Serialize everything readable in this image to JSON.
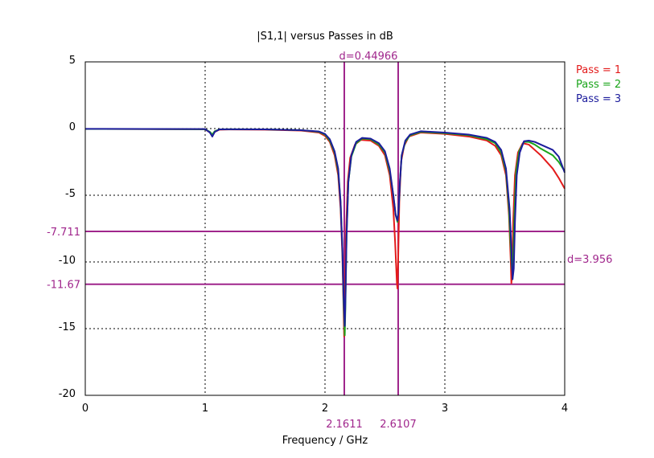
{
  "chart_data": {
    "type": "line",
    "title": "|S1,1| versus Passes in dB",
    "xlabel": "Frequency / GHz",
    "ylabel": "",
    "xlim": [
      0,
      4
    ],
    "ylim": [
      -20,
      5
    ],
    "x_ticks": [
      "0",
      "1",
      "2",
      "3",
      "4"
    ],
    "y_ticks": [
      "5",
      "0",
      "-5",
      "-10",
      "-15",
      "-20"
    ],
    "x_tick_values": [
      0,
      1,
      2,
      3,
      4
    ],
    "y_tick_values": [
      5,
      0,
      -5,
      -10,
      -15,
      -20
    ],
    "grid": true,
    "legend_position": "right",
    "series": [
      {
        "name": "Pass = 1",
        "color": "#e31b1b",
        "x": [
          0,
          0.5,
          1.0,
          1.04,
          1.06,
          1.08,
          1.12,
          1.2,
          1.5,
          1.8,
          1.95,
          2.0,
          2.04,
          2.08,
          2.11,
          2.13,
          2.145,
          2.155,
          2.16,
          2.165,
          2.175,
          2.19,
          2.21,
          2.25,
          2.3,
          2.38,
          2.45,
          2.5,
          2.54,
          2.57,
          2.585,
          2.6,
          2.605,
          2.61,
          2.62,
          2.635,
          2.66,
          2.7,
          2.8,
          3.0,
          3.2,
          3.35,
          3.42,
          3.47,
          3.51,
          3.535,
          3.55,
          3.555,
          3.56,
          3.57,
          3.585,
          3.61,
          3.65,
          3.7,
          3.75,
          3.8,
          3.9,
          3.95,
          4.0
        ],
        "values": [
          -0.03,
          -0.04,
          -0.05,
          -0.3,
          -0.55,
          -0.25,
          -0.08,
          -0.07,
          -0.08,
          -0.15,
          -0.3,
          -0.55,
          -1.0,
          -2.0,
          -3.5,
          -6.0,
          -9.5,
          -13.5,
          -15.6,
          -13.2,
          -8.0,
          -4.0,
          -2.2,
          -1.2,
          -0.85,
          -0.9,
          -1.3,
          -2.0,
          -3.5,
          -6.0,
          -8.5,
          -11.6,
          -12.0,
          -10.0,
          -5.5,
          -2.5,
          -1.3,
          -0.6,
          -0.3,
          -0.4,
          -0.6,
          -0.9,
          -1.3,
          -2.0,
          -3.5,
          -6.5,
          -10.0,
          -11.6,
          -11.0,
          -7.0,
          -3.5,
          -1.8,
          -1.1,
          -1.2,
          -1.6,
          -2.0,
          -3.0,
          -3.7,
          -4.5
        ]
      },
      {
        "name": "Pass = 2",
        "color": "#1ba51b",
        "x": [
          0,
          0.5,
          1.0,
          1.04,
          1.06,
          1.08,
          1.12,
          1.2,
          1.5,
          1.8,
          1.95,
          2.0,
          2.04,
          2.08,
          2.11,
          2.13,
          2.145,
          2.155,
          2.165,
          2.17,
          2.18,
          2.195,
          2.22,
          2.26,
          2.31,
          2.38,
          2.45,
          2.5,
          2.54,
          2.57,
          2.59,
          2.605,
          2.615,
          2.625,
          2.64,
          2.67,
          2.71,
          2.8,
          3.0,
          3.2,
          3.35,
          3.42,
          3.47,
          3.51,
          3.535,
          3.55,
          3.56,
          3.57,
          3.58,
          3.595,
          3.62,
          3.66,
          3.7,
          3.75,
          3.8,
          3.9,
          3.95,
          4.0
        ],
        "values": [
          -0.03,
          -0.04,
          -0.05,
          -0.25,
          -0.45,
          -0.2,
          -0.06,
          -0.05,
          -0.06,
          -0.12,
          -0.25,
          -0.45,
          -0.9,
          -1.8,
          -3.2,
          -5.5,
          -9.0,
          -13.0,
          -15.5,
          -13.5,
          -8.0,
          -4.0,
          -2.1,
          -1.1,
          -0.75,
          -0.8,
          -1.2,
          -1.8,
          -3.2,
          -5.0,
          -6.5,
          -7.0,
          -6.0,
          -4.0,
          -2.0,
          -1.0,
          -0.5,
          -0.25,
          -0.35,
          -0.5,
          -0.8,
          -1.1,
          -1.8,
          -3.2,
          -6.0,
          -9.0,
          -10.6,
          -10.0,
          -6.5,
          -3.2,
          -1.7,
          -1.0,
          -1.0,
          -1.2,
          -1.5,
          -2.0,
          -2.5,
          -3.2
        ]
      },
      {
        "name": "Pass = 3",
        "color": "#1c1c9c",
        "x": [
          0,
          0.5,
          1.0,
          1.04,
          1.06,
          1.08,
          1.12,
          1.2,
          1.5,
          1.8,
          1.95,
          2.0,
          2.04,
          2.08,
          2.11,
          2.13,
          2.145,
          2.155,
          2.165,
          2.17,
          2.18,
          2.195,
          2.22,
          2.26,
          2.31,
          2.38,
          2.45,
          2.5,
          2.54,
          2.57,
          2.59,
          2.605,
          2.615,
          2.625,
          2.64,
          2.67,
          2.71,
          2.8,
          3.0,
          3.2,
          3.35,
          3.42,
          3.47,
          3.51,
          3.54,
          3.555,
          3.565,
          3.575,
          3.585,
          3.6,
          3.625,
          3.66,
          3.7,
          3.75,
          3.8,
          3.9,
          3.95,
          4.0
        ],
        "values": [
          -0.02,
          -0.03,
          -0.04,
          -0.3,
          -0.6,
          -0.25,
          -0.06,
          -0.05,
          -0.06,
          -0.12,
          -0.22,
          -0.4,
          -0.8,
          -1.7,
          -3.0,
          -5.5,
          -9.0,
          -12.5,
          -14.8,
          -13.0,
          -8.0,
          -4.0,
          -2.0,
          -1.0,
          -0.7,
          -0.75,
          -1.1,
          -1.7,
          -3.0,
          -5.0,
          -6.5,
          -6.9,
          -6.0,
          -4.0,
          -2.0,
          -0.9,
          -0.45,
          -0.2,
          -0.3,
          -0.45,
          -0.7,
          -1.0,
          -1.6,
          -3.0,
          -6.0,
          -9.0,
          -11.3,
          -10.5,
          -7.0,
          -3.5,
          -1.8,
          -0.95,
          -0.9,
          -1.0,
          -1.2,
          -1.6,
          -2.1,
          -3.3
        ]
      }
    ],
    "markers": {
      "vertical": [
        {
          "x": 2.1611,
          "label": "2.1611"
        },
        {
          "x": 2.6107,
          "label": "2.6107"
        }
      ],
      "horizontal": [
        {
          "y": -7.711,
          "label": "-7.711"
        },
        {
          "y": -11.67,
          "label": "-11.67"
        }
      ],
      "delta_x_label": "d=0.44966",
      "delta_y_label": "d=3.956",
      "color": "#a0268c"
    }
  }
}
